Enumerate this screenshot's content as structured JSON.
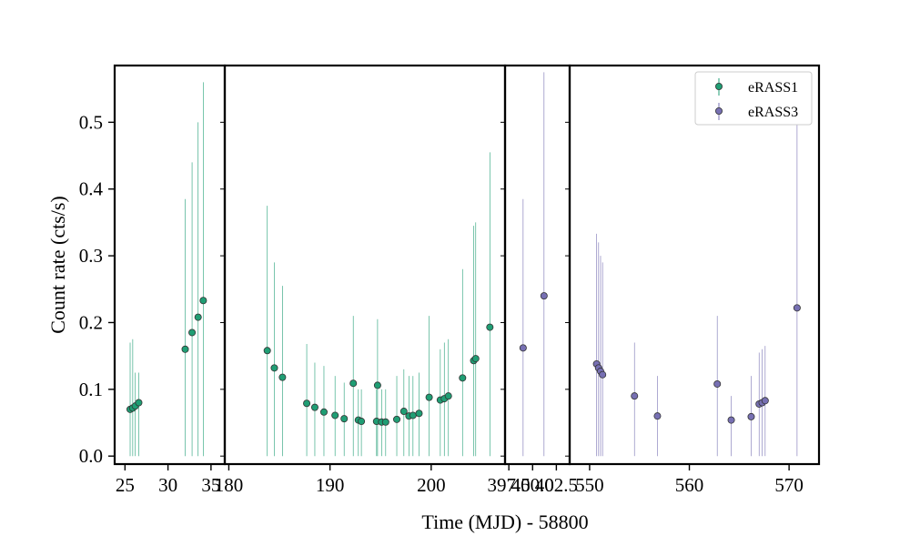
{
  "chart_data": {
    "type": "scatter",
    "xlabel": "Time (MJD) - 58800",
    "ylabel": "Count rate (cts/s)",
    "ylim": [
      -0.012,
      0.585
    ],
    "yticks": [
      0.0,
      0.1,
      0.2,
      0.3,
      0.4,
      0.5
    ],
    "ytick_labels": [
      "0.0",
      "0.1",
      "0.2",
      "0.3",
      "0.4",
      "0.5"
    ],
    "legend_position": "top-right",
    "colors": {
      "eRASS1": "#1f9e74",
      "eRASS3": "#7770b3",
      "edge": "#333333"
    },
    "panels": [
      {
        "xlim": [
          23.8,
          36.6
        ],
        "xticks": [
          25,
          30,
          35
        ],
        "xtick_labels": [
          "25",
          "30",
          "35"
        ]
      },
      {
        "xlim": [
          179.6,
          207.3
        ],
        "xticks": [
          180,
          190,
          200
        ],
        "xtick_labels": [
          "180",
          "190",
          "200"
        ]
      },
      {
        "xlim": [
          397.1,
          403.9
        ],
        "xticks": [
          397.5,
          400.0,
          402.5
        ],
        "xtick_labels": [
          "397.5",
          "400.0",
          "402.5"
        ]
      },
      {
        "xlim": [
          548.0,
          573.0
        ],
        "xticks": [
          550,
          560,
          570
        ],
        "xtick_labels": [
          "550",
          "560",
          "570"
        ]
      }
    ],
    "series": [
      {
        "name": "eRASS1",
        "points": [
          [
            25.6,
            0.07,
            0.17
          ],
          [
            25.9,
            0.072,
            0.175
          ],
          [
            26.2,
            0.075,
            0.125
          ],
          [
            26.6,
            0.08,
            0.125
          ],
          [
            32.0,
            0.16,
            0.385
          ],
          [
            32.8,
            0.185,
            0.44
          ],
          [
            33.5,
            0.208,
            0.5
          ],
          [
            34.1,
            0.233,
            0.56
          ],
          [
            183.8,
            0.158,
            0.375
          ],
          [
            184.5,
            0.132,
            0.29
          ],
          [
            185.3,
            0.118,
            0.255
          ],
          [
            187.7,
            0.079,
            0.168
          ],
          [
            188.5,
            0.073,
            0.14
          ],
          [
            189.4,
            0.066,
            0.135
          ],
          [
            190.5,
            0.061,
            0.12
          ],
          [
            191.4,
            0.056,
            0.11
          ],
          [
            192.3,
            0.109,
            0.21
          ],
          [
            192.8,
            0.054,
            0.1
          ],
          [
            193.1,
            0.052,
            0.1
          ],
          [
            194.6,
            0.052,
            0.1
          ],
          [
            194.7,
            0.106,
            0.205
          ],
          [
            195.1,
            0.051,
            0.1
          ],
          [
            195.5,
            0.051,
            0.1
          ],
          [
            196.6,
            0.055,
            0.12
          ],
          [
            197.3,
            0.067,
            0.13
          ],
          [
            197.8,
            0.06,
            0.12
          ],
          [
            198.2,
            0.061,
            0.12
          ],
          [
            198.8,
            0.064,
            0.125
          ],
          [
            199.8,
            0.088,
            0.21
          ],
          [
            200.9,
            0.084,
            0.16
          ],
          [
            201.3,
            0.086,
            0.17
          ],
          [
            201.7,
            0.09,
            0.175
          ],
          [
            203.1,
            0.117,
            0.28
          ],
          [
            204.2,
            0.143,
            0.345
          ],
          [
            204.4,
            0.146,
            0.35
          ],
          [
            205.8,
            0.193,
            0.455
          ]
        ]
      },
      {
        "name": "eRASS3",
        "points": [
          [
            399.0,
            0.162,
            0.385
          ],
          [
            401.2,
            0.24,
            0.575
          ],
          [
            550.7,
            0.138,
            0.333
          ],
          [
            550.9,
            0.132,
            0.32
          ],
          [
            551.1,
            0.127,
            0.3
          ],
          [
            551.3,
            0.122,
            0.29
          ],
          [
            554.5,
            0.09,
            0.17
          ],
          [
            556.8,
            0.06,
            0.12
          ],
          [
            562.8,
            0.108,
            0.21
          ],
          [
            564.2,
            0.054,
            0.09
          ],
          [
            566.2,
            0.059,
            0.12
          ],
          [
            567.0,
            0.078,
            0.155
          ],
          [
            567.3,
            0.08,
            0.16
          ],
          [
            567.6,
            0.083,
            0.165
          ],
          [
            570.8,
            0.222,
            0.53
          ]
        ]
      }
    ]
  }
}
